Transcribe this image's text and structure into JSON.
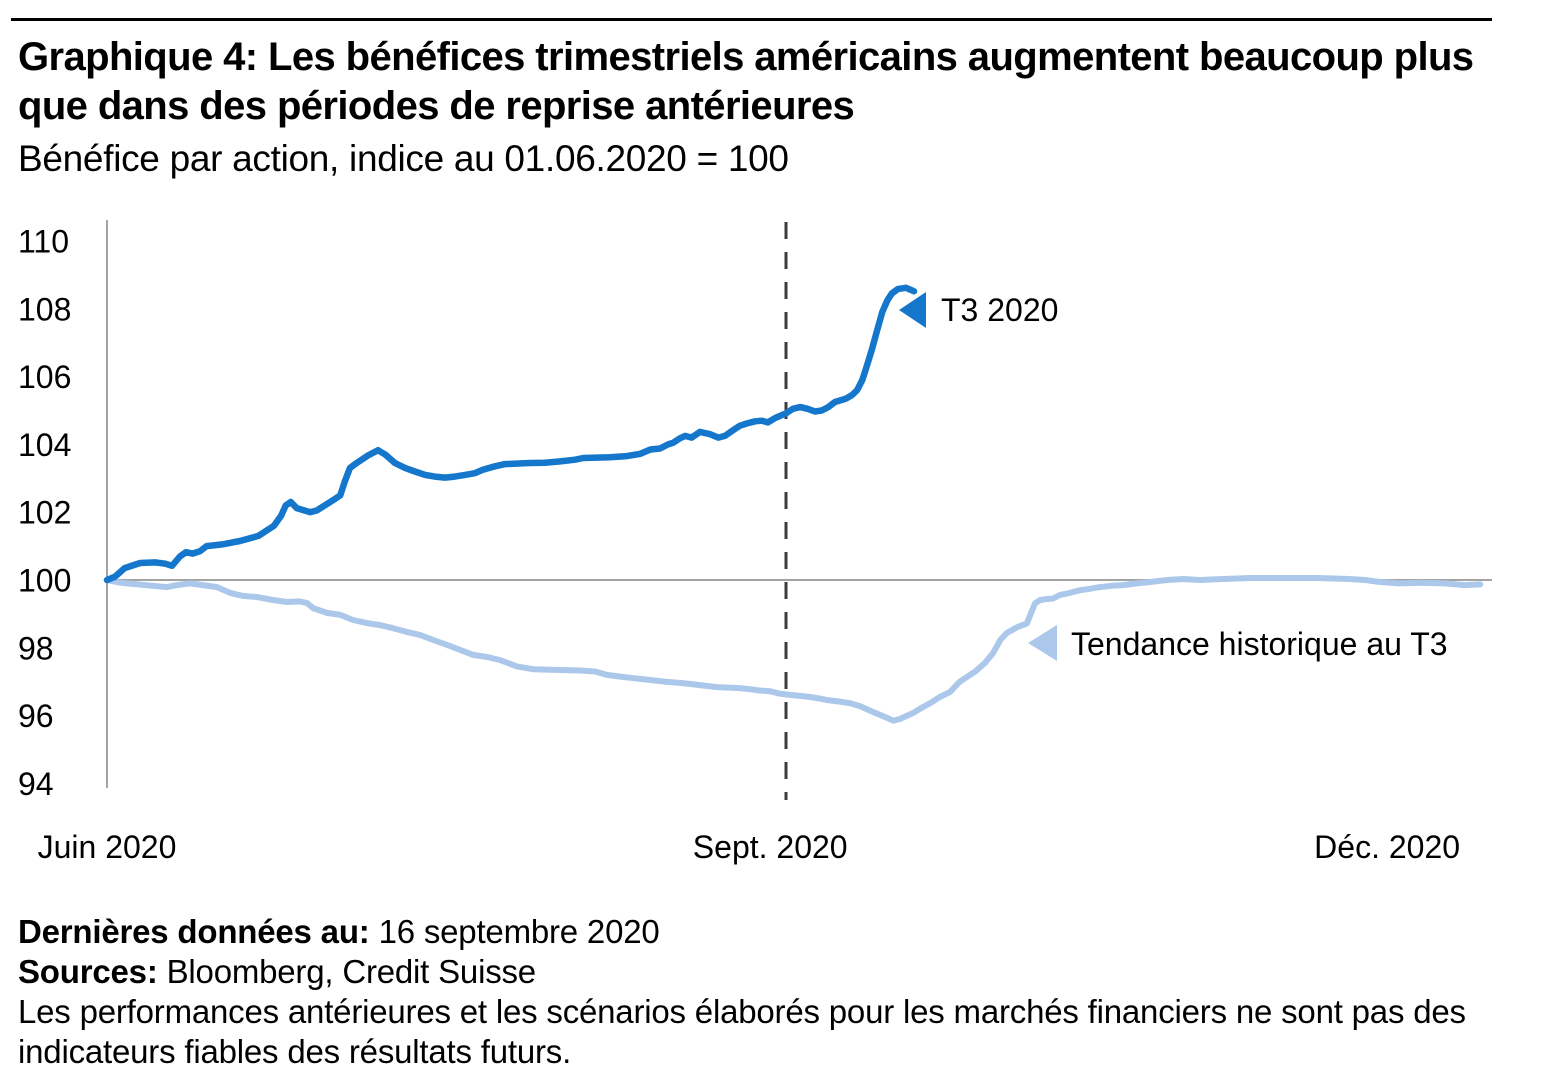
{
  "header": {
    "title_line1": "Graphique 4: Les bénéfices trimestriels américains augmentent beaucoup plus",
    "title_line2": "que dans des périodes de reprise antérieures",
    "subtitle": "Bénéfice par action, indice au 01.06.2020 = 100"
  },
  "footer": {
    "last_data_label": "Dernières données au:",
    "last_data_value": "16 septembre 2020",
    "sources_label": "Sources:",
    "sources_value": "Bloomberg, Credit Suisse",
    "disclaimer_line1": "Les performances antérieures et les scénarios élaborés pour les marchés financiers ne sont pas des",
    "disclaimer_line2": "indicateurs fiables des résultats futurs."
  },
  "colors": {
    "t3_blue": "#1477cc",
    "historical_light_blue": "#abc8ea",
    "axis_gray": "#a3a3a3",
    "dashed_line": "#3d3d3d",
    "text_black": "#000000"
  },
  "chart_data": {
    "type": "line",
    "title": "Graphique 4: Les bénéfices trimestriels américains augmentent beaucoup plus que dans des périodes de reprise antérieures",
    "subtitle": "Bénéfice par action, indice au 01.06.2020 = 100",
    "xlabel": "",
    "ylabel": "",
    "grid": false,
    "legend_position": "inline-annotations",
    "x_axis": {
      "unit": "days since 2020-06-01",
      "range_days": [
        0,
        187
      ],
      "ticks": [
        {
          "label": "Juin 2020",
          "day": 0
        },
        {
          "label": "Sept. 2020",
          "day": 92
        },
        {
          "label": "Déc. 2020",
          "day": 183
        }
      ]
    },
    "y_axis": {
      "min": 94,
      "max": 110,
      "ticks": [
        110,
        108,
        106,
        104,
        102,
        100,
        98,
        96,
        94
      ],
      "baseline": 100
    },
    "reference_lines": {
      "horizontal_at": 100,
      "vertical_dashed_at_day": 92
    },
    "series": [
      {
        "id": "t3",
        "name": "T3 2020",
        "color": "#1477cc",
        "values": [
          [
            0,
            100
          ],
          [
            1.1,
            100.1
          ],
          [
            2.4,
            100.35
          ],
          [
            4.5,
            100.5
          ],
          [
            6.5,
            100.52
          ],
          [
            7.9,
            100.48
          ],
          [
            8.8,
            100.42
          ],
          [
            9.9,
            100.7
          ],
          [
            10.7,
            100.82
          ],
          [
            11.6,
            100.78
          ],
          [
            12.6,
            100.85
          ],
          [
            13.5,
            101
          ],
          [
            15.6,
            101.05
          ],
          [
            18,
            101.15
          ],
          [
            20.5,
            101.3
          ],
          [
            22.6,
            101.6
          ],
          [
            23.6,
            101.9
          ],
          [
            24.2,
            102.2
          ],
          [
            24.9,
            102.3
          ],
          [
            25.7,
            102.12
          ],
          [
            27.5,
            102
          ],
          [
            28.4,
            102.05
          ],
          [
            30.6,
            102.35
          ],
          [
            31.6,
            102.5
          ],
          [
            32.2,
            102.9
          ],
          [
            32.9,
            103.3
          ],
          [
            33.6,
            103.42
          ],
          [
            35.4,
            103.68
          ],
          [
            36.7,
            103.83
          ],
          [
            37.7,
            103.7
          ],
          [
            39,
            103.45
          ],
          [
            40.4,
            103.3
          ],
          [
            41.7,
            103.2
          ],
          [
            43.1,
            103.1
          ],
          [
            44.4,
            103.05
          ],
          [
            45.8,
            103.02
          ],
          [
            47.1,
            103.05
          ],
          [
            48.5,
            103.1
          ],
          [
            49.8,
            103.15
          ],
          [
            50.9,
            103.25
          ],
          [
            52.5,
            103.35
          ],
          [
            53.9,
            103.42
          ],
          [
            57.3,
            103.45
          ],
          [
            59.3,
            103.46
          ],
          [
            61.4,
            103.5
          ],
          [
            63.4,
            103.55
          ],
          [
            64.5,
            103.6
          ],
          [
            68.1,
            103.62
          ],
          [
            70.2,
            103.65
          ],
          [
            72.2,
            103.72
          ],
          [
            73.6,
            103.85
          ],
          [
            74.9,
            103.88
          ],
          [
            76,
            104
          ],
          [
            76.7,
            104.05
          ],
          [
            77.6,
            104.18
          ],
          [
            78.3,
            104.25
          ],
          [
            79.2,
            104.2
          ],
          [
            80.3,
            104.37
          ],
          [
            81.7,
            104.3
          ],
          [
            82.8,
            104.2
          ],
          [
            83.7,
            104.25
          ],
          [
            84.8,
            104.42
          ],
          [
            85.7,
            104.55
          ],
          [
            86.7,
            104.62
          ],
          [
            87.8,
            104.68
          ],
          [
            88.7,
            104.7
          ],
          [
            89.5,
            104.65
          ],
          [
            90.5,
            104.78
          ],
          [
            92,
            104.92
          ],
          [
            92.9,
            105.05
          ],
          [
            93.9,
            105.1
          ],
          [
            94.9,
            105.05
          ],
          [
            95.9,
            104.97
          ],
          [
            96.8,
            105
          ],
          [
            97.7,
            105.1
          ],
          [
            98.6,
            105.25
          ],
          [
            100.1,
            105.35
          ],
          [
            100.9,
            105.45
          ],
          [
            101.6,
            105.6
          ],
          [
            102.3,
            105.9
          ],
          [
            102.9,
            106.3
          ],
          [
            103.6,
            106.8
          ],
          [
            104.3,
            107.35
          ],
          [
            105,
            107.9
          ],
          [
            105.7,
            108.25
          ],
          [
            106.3,
            108.45
          ],
          [
            107.1,
            108.58
          ],
          [
            108.2,
            108.62
          ],
          [
            109.3,
            108.52
          ]
        ]
      },
      {
        "id": "historical",
        "name": "Tendance historique au T3",
        "color": "#abc8ea",
        "values": [
          [
            0,
            100
          ],
          [
            1.8,
            99.92
          ],
          [
            3.8,
            99.88
          ],
          [
            6.2,
            99.83
          ],
          [
            8.1,
            99.79
          ],
          [
            9.5,
            99.85
          ],
          [
            11.2,
            99.9
          ],
          [
            13,
            99.85
          ],
          [
            14.9,
            99.79
          ],
          [
            16.7,
            99.62
          ],
          [
            18.4,
            99.53
          ],
          [
            20.3,
            99.5
          ],
          [
            22.5,
            99.41
          ],
          [
            24.4,
            99.35
          ],
          [
            26.1,
            99.37
          ],
          [
            27.1,
            99.32
          ],
          [
            27.9,
            99.17
          ],
          [
            29.8,
            99.03
          ],
          [
            31.6,
            98.97
          ],
          [
            33.3,
            98.82
          ],
          [
            35.2,
            98.73
          ],
          [
            37,
            98.67
          ],
          [
            38.7,
            98.58
          ],
          [
            40.6,
            98.47
          ],
          [
            42.4,
            98.38
          ],
          [
            44.2,
            98.23
          ],
          [
            46.1,
            98.08
          ],
          [
            47.8,
            97.94
          ],
          [
            49.6,
            97.79
          ],
          [
            51.5,
            97.73
          ],
          [
            53.2,
            97.64
          ],
          [
            55.5,
            97.45
          ],
          [
            57.7,
            97.37
          ],
          [
            60,
            97.35
          ],
          [
            64.1,
            97.33
          ],
          [
            66.1,
            97.3
          ],
          [
            67.7,
            97.2
          ],
          [
            69.5,
            97.15
          ],
          [
            71.5,
            97.1
          ],
          [
            73.6,
            97.05
          ],
          [
            75.6,
            97
          ],
          [
            78,
            96.96
          ],
          [
            80.3,
            96.9
          ],
          [
            82.6,
            96.84
          ],
          [
            85.7,
            96.81
          ],
          [
            87.1,
            96.78
          ],
          [
            88.4,
            96.74
          ],
          [
            89.8,
            96.72
          ],
          [
            91.1,
            96.65
          ],
          [
            92.5,
            96.61
          ],
          [
            93.9,
            96.58
          ],
          [
            95.2,
            96.55
          ],
          [
            96.6,
            96.5
          ],
          [
            97.5,
            96.46
          ],
          [
            99,
            96.42
          ],
          [
            100.6,
            96.37
          ],
          [
            102,
            96.28
          ],
          [
            103.3,
            96.15
          ],
          [
            104.7,
            96.02
          ],
          [
            105.7,
            95.93
          ],
          [
            106.5,
            95.85
          ],
          [
            107.4,
            95.9
          ],
          [
            108.4,
            96
          ],
          [
            109.2,
            96.08
          ],
          [
            110.1,
            96.2
          ],
          [
            111.5,
            96.37
          ],
          [
            112.8,
            96.55
          ],
          [
            114.2,
            96.7
          ],
          [
            115.5,
            97
          ],
          [
            117.6,
            97.3
          ],
          [
            118.9,
            97.55
          ],
          [
            120,
            97.84
          ],
          [
            121,
            98.23
          ],
          [
            121.9,
            98.44
          ],
          [
            123.3,
            98.61
          ],
          [
            124.6,
            98.72
          ],
          [
            125.7,
            99.31
          ],
          [
            126.4,
            99.41
          ],
          [
            127.3,
            99.44
          ],
          [
            128.1,
            99.45
          ],
          [
            129.1,
            99.56
          ],
          [
            130.4,
            99.62
          ],
          [
            131.8,
            99.7
          ],
          [
            133.1,
            99.74
          ],
          [
            134.5,
            99.79
          ],
          [
            136.1,
            99.83
          ],
          [
            137.6,
            99.85
          ],
          [
            139.5,
            99.9
          ],
          [
            141.3,
            99.94
          ],
          [
            143.6,
            100
          ],
          [
            145.8,
            100.03
          ],
          [
            148,
            100
          ],
          [
            151.2,
            100.03
          ],
          [
            154.8,
            100.06
          ],
          [
            159.3,
            100.06
          ],
          [
            163.9,
            100.06
          ],
          [
            168.3,
            100.03
          ],
          [
            170.4,
            100
          ],
          [
            172.4,
            99.94
          ],
          [
            175.1,
            99.9
          ],
          [
            178.2,
            99.92
          ],
          [
            181.2,
            99.9
          ],
          [
            183.9,
            99.85
          ],
          [
            186,
            99.87
          ]
        ]
      }
    ],
    "annotations": [
      {
        "id": "t3",
        "text": "T3 2020",
        "arrow": "left",
        "color": "#1477cc",
        "anchor_day": 108,
        "anchor_value": 108
      },
      {
        "id": "historical",
        "text": "Tendance historique au T3",
        "arrow": "left",
        "color": "#abc8ea",
        "anchor_day": 125,
        "anchor_value": 98.1
      }
    ]
  }
}
